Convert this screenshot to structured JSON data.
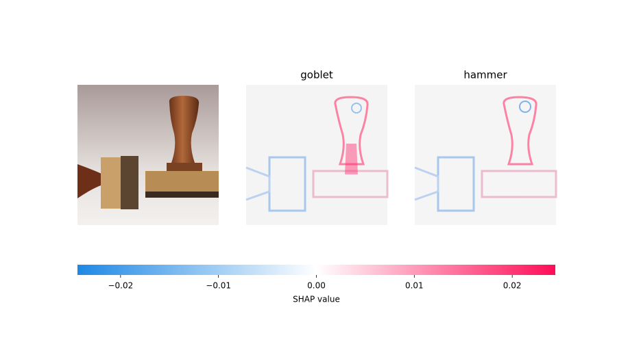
{
  "chart_data": {
    "type": "heatmap",
    "panel_titles": [
      "goblet",
      "hammer"
    ],
    "xlabel": "SHAP value",
    "colors": [
      "#1e88e5",
      "#ffffff",
      "#ff0d57"
    ],
    "xlim": [
      -0.0244,
      0.0244
    ],
    "xticks": [
      {
        "value": -0.02,
        "label": "−0.02"
      },
      {
        "value": -0.01,
        "label": "−0.01"
      },
      {
        "value": 0,
        "label": "0.00"
      },
      0.01,
      0.02
    ]
  }
}
